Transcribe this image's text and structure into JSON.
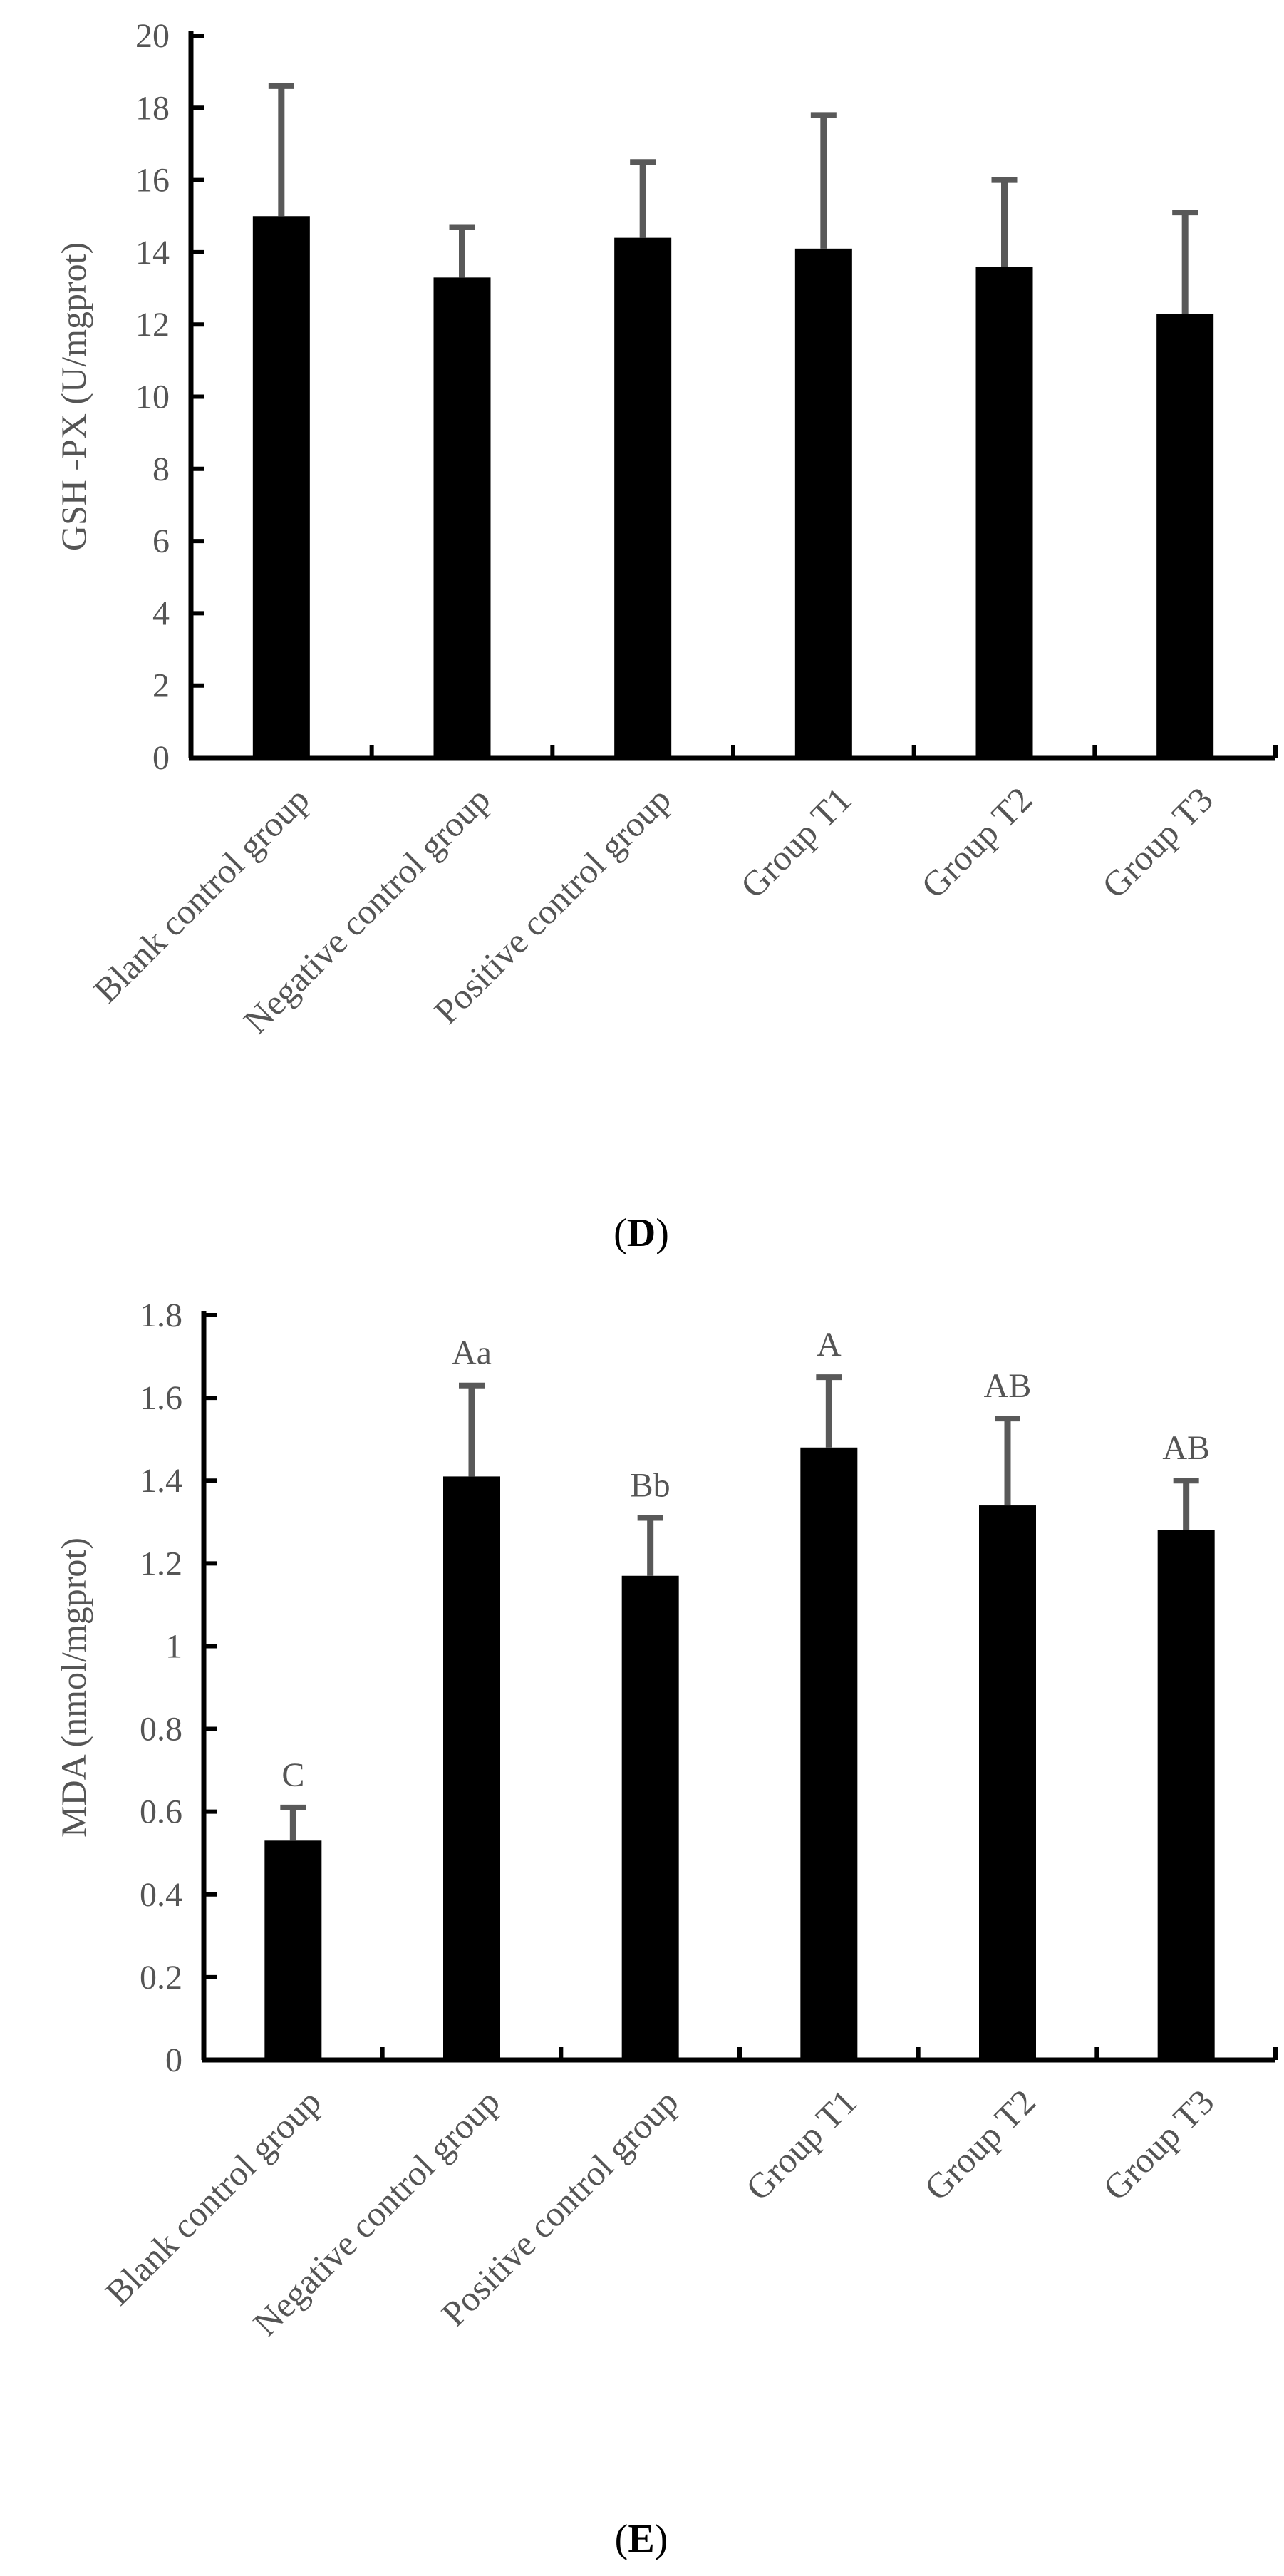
{
  "chart_data": [
    {
      "type": "bar",
      "panel_label": "D",
      "panel_label_open": "(",
      "panel_label_close": ")",
      "ylabel": "GSH -PX (U/mgprot)",
      "xlabel": "",
      "ylim": [
        0,
        20
      ],
      "yticks": [
        0,
        2,
        4,
        6,
        8,
        10,
        12,
        14,
        16,
        18,
        20
      ],
      "categories": [
        "Blank control group",
        "Negative control group",
        "Positive control group",
        "Group T1",
        "Group T2",
        "Group T3"
      ],
      "series": [
        {
          "name": "GSH-PX",
          "values": [
            15.0,
            13.3,
            14.4,
            14.1,
            13.6,
            12.3
          ],
          "error_upper": [
            3.6,
            1.4,
            2.1,
            3.7,
            2.4,
            2.8
          ],
          "labels": [
            "",
            "",
            "",
            "",
            "",
            ""
          ]
        }
      ],
      "bar_color": "#000000",
      "error_color": "#595959",
      "grid": false
    },
    {
      "type": "bar",
      "panel_label": "E",
      "panel_label_open": "(",
      "panel_label_close": ")",
      "ylabel": "MDA (nmol/mgprot)",
      "xlabel": "",
      "ylim": [
        0,
        1.8
      ],
      "yticks": [
        0,
        0.2,
        0.4,
        0.6,
        0.8,
        1,
        1.2,
        1.4,
        1.6,
        1.8
      ],
      "categories": [
        "Blank control group",
        "Negative control group",
        "Positive control group",
        "Group T1",
        "Group T2",
        "Group T3"
      ],
      "series": [
        {
          "name": "MDA",
          "values": [
            0.53,
            1.41,
            1.17,
            1.48,
            1.34,
            1.28
          ],
          "error_upper": [
            0.08,
            0.22,
            0.14,
            0.17,
            0.21,
            0.12
          ],
          "labels": [
            "C",
            "Aa",
            "Bb",
            "A",
            "AB",
            "AB"
          ]
        }
      ],
      "bar_color": "#000000",
      "error_color": "#595959",
      "grid": false
    }
  ]
}
